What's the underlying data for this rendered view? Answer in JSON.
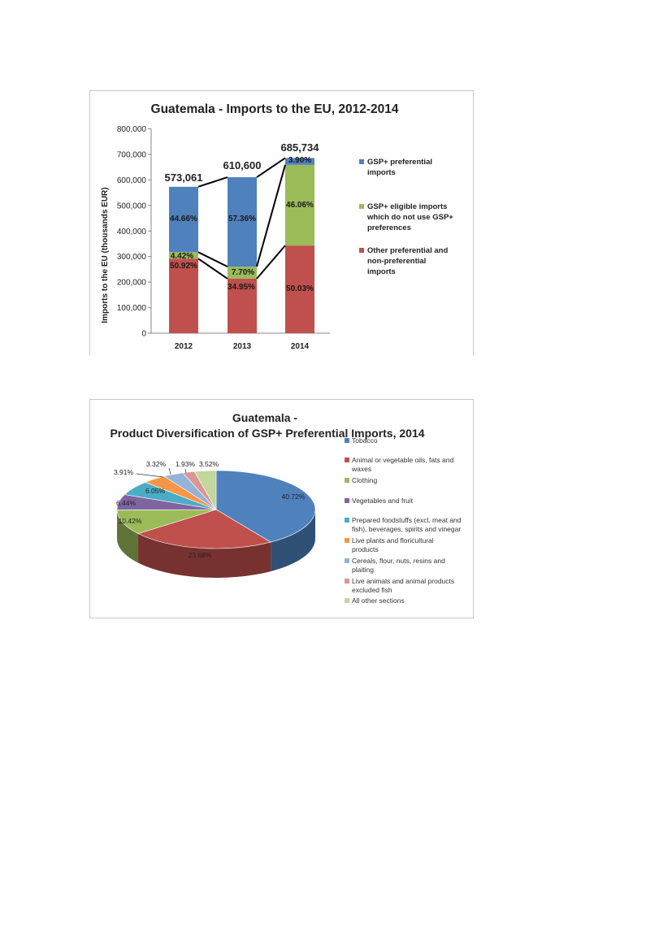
{
  "chart_data": [
    {
      "type": "bar",
      "stacked": true,
      "title": "Guatemala - Imports to the EU, 2012-2014",
      "xlabel": "",
      "ylabel": "Imports to the EU (thousands EUR)",
      "ylim": [
        0,
        800000
      ],
      "yticks": [
        "0",
        "100,000",
        "200,000",
        "300,000",
        "400,000",
        "500,000",
        "600,000",
        "700,000",
        "800,000"
      ],
      "categories": [
        "2012",
        "2013",
        "2014"
      ],
      "totals": [
        573061,
        610600,
        685734
      ],
      "total_labels": [
        "573,061",
        "610,600",
        "685,734"
      ],
      "series": [
        {
          "name": "Other preferential and non-preferential imports",
          "color": "#c0504d",
          "percent": [
            50.92,
            34.95,
            50.03
          ],
          "labels": [
            "50.92%",
            "34.95%",
            "50.03%"
          ]
        },
        {
          "name": "GSP+ eligible imports which do not use GSP+ preferences",
          "color": "#9bbb59",
          "percent": [
            4.42,
            7.7,
            46.06
          ],
          "labels": [
            "4.42%",
            "7.70%",
            "46.06%"
          ]
        },
        {
          "name": "GSP+ preferential imports",
          "color": "#4f81bd",
          "percent": [
            44.66,
            57.36,
            3.9
          ],
          "labels": [
            "44.66%",
            "57.36%",
            "3.90%"
          ]
        }
      ],
      "legend_position": "right",
      "grid": false
    },
    {
      "type": "pie",
      "title_line1": "Guatemala -",
      "title_line2": "Product Diversification of GSP+ Preferential Imports, 2014",
      "legend_position": "right",
      "slices": [
        {
          "name": "Tobacco",
          "value": 40.72,
          "label": "40.72%",
          "color": "#4f81bd"
        },
        {
          "name": "Animal or vegetable oils, fats and waxes",
          "value": 23.68,
          "label": "23.68%",
          "color": "#c0504d"
        },
        {
          "name": "Clothing",
          "value": 10.42,
          "label": "10.42%",
          "color": "#9bbb59"
        },
        {
          "name": "Vegetables and fruit",
          "value": 6.44,
          "label": "6.44%",
          "color": "#8064a2"
        },
        {
          "name": "Prepared foodstuffs (excl. meat and fish), beverages, spirits and vinegar",
          "value": 6.05,
          "label": "6.05%",
          "color": "#4bacc6"
        },
        {
          "name": "Live plants and floricultural products",
          "value": 3.91,
          "label": "3.91%",
          "color": "#f79646"
        },
        {
          "name": "Cereals, flour, nuts, resins and plaiting",
          "value": 3.32,
          "label": "3.32%",
          "color": "#95b3d7"
        },
        {
          "name": "Live animals and animal products excluded fish",
          "value": 1.93,
          "label": "1.93%",
          "color": "#d99694"
        },
        {
          "name": "All other sections",
          "value": 3.52,
          "label": "3.52%",
          "color": "#c3d69b"
        }
      ]
    }
  ]
}
